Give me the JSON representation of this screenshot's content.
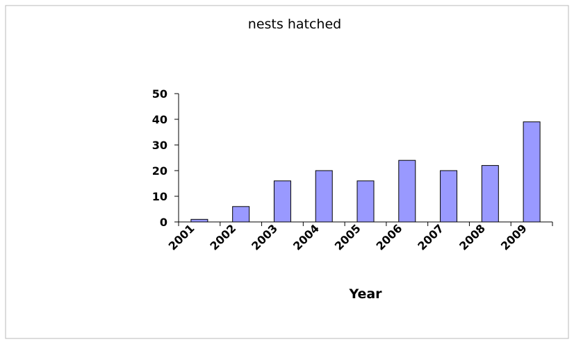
{
  "chart_data": {
    "type": "bar",
    "title": "nests hatched",
    "xlabel": "Year",
    "ylabel": "",
    "categories": [
      "2001",
      "2002",
      "2003",
      "2004",
      "2005",
      "2006",
      "2007",
      "2008",
      "2009"
    ],
    "values": [
      1,
      6,
      16,
      20,
      16,
      24,
      20,
      22,
      39
    ],
    "ylim": [
      0,
      50
    ],
    "yticks": [
      0,
      10,
      20,
      30,
      40,
      50
    ],
    "grid": false,
    "legend": "none",
    "colors": {
      "bar_fill": "#9999ff",
      "bar_stroke": "#000000",
      "frame_stroke": "#b8b8b8"
    }
  }
}
